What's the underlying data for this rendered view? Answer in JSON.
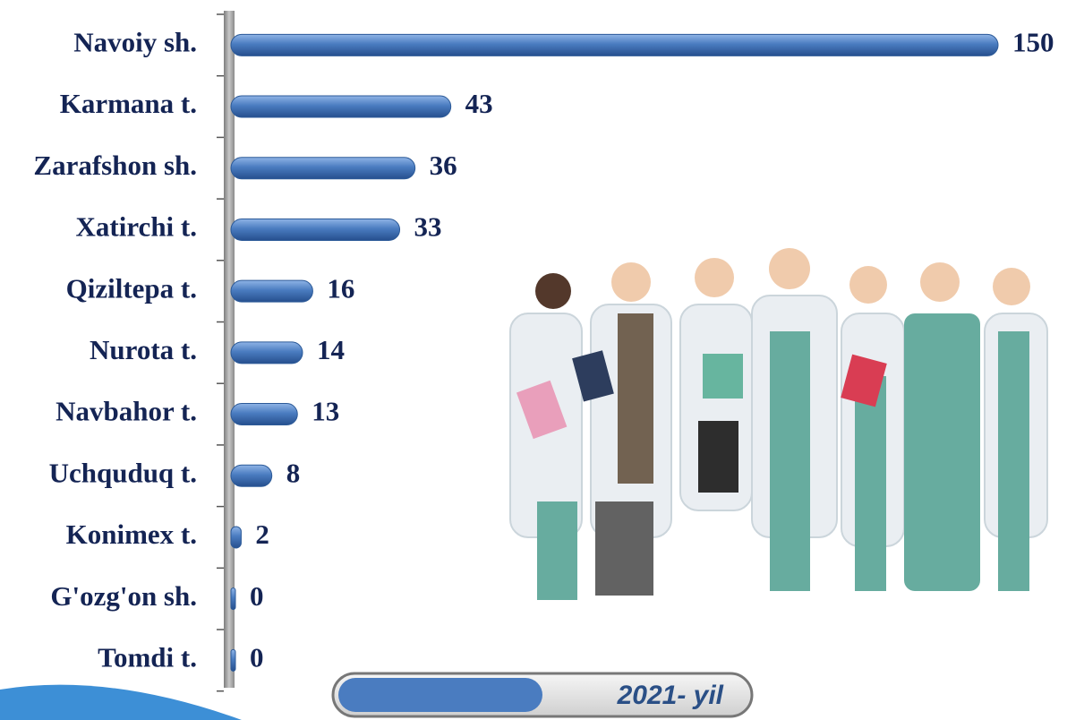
{
  "chart_data": {
    "type": "bar",
    "orientation": "horizontal",
    "categories": [
      "Navoiy sh.",
      "Karmana t.",
      "Zarafshon sh.",
      "Xatirchi t.",
      "Qiziltepa t.",
      "Nurota t.",
      "Navbahor t.",
      "Uchquduq t.",
      "Konimex t.",
      "G'ozg'on sh.",
      "Tomdi t."
    ],
    "series": [
      {
        "name": "2021- yil",
        "color": "#4a7cc0",
        "values": [
          150,
          43,
          36,
          33,
          16,
          14,
          13,
          8,
          2,
          0,
          0
        ]
      }
    ]
  }
}
